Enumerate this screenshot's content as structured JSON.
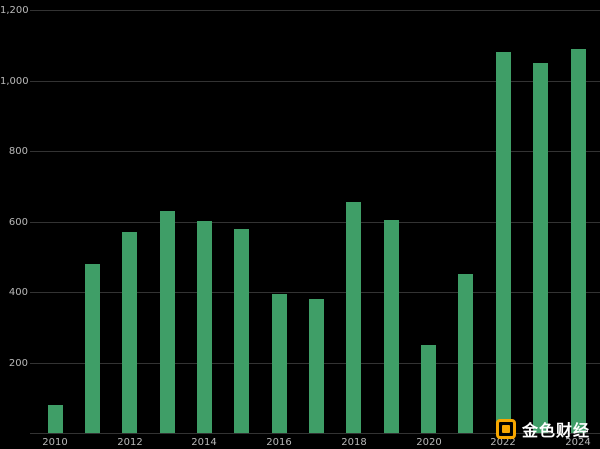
{
  "chart_data": {
    "type": "bar",
    "categories": [
      "2010",
      "2011",
      "2012",
      "2013",
      "2014",
      "2015",
      "2016",
      "2017",
      "2018",
      "2019",
      "2020",
      "2021",
      "2022",
      "2023",
      "2024"
    ],
    "values": [
      80,
      480,
      570,
      630,
      600,
      580,
      395,
      380,
      655,
      605,
      250,
      450,
      1080,
      1050,
      1090
    ],
    "title": "",
    "xlabel": "",
    "ylabel": "",
    "ylim": [
      0,
      1200
    ],
    "ytick_interval": 200,
    "ytick_labels": [
      "200",
      "400",
      "600",
      "800",
      "1,000",
      "1,200"
    ],
    "ytick_values": [
      200,
      400,
      600,
      800,
      1000,
      1200
    ],
    "gridline_values": [
      0,
      200,
      400,
      600,
      800,
      1000,
      1200
    ],
    "xtick_labels": [
      "2010",
      "2012",
      "2014",
      "2016",
      "2018",
      "2020",
      "2022",
      "2024"
    ],
    "xtick_bar_indexes": [
      0,
      2,
      4,
      6,
      8,
      10,
      12,
      14
    ],
    "bar_color": "#3f9e67",
    "background": "#000000",
    "grid": true,
    "legend": "none"
  },
  "watermark": {
    "text": "金色财经",
    "text_color": "#ffffff",
    "logo_color": "#f7a600"
  }
}
